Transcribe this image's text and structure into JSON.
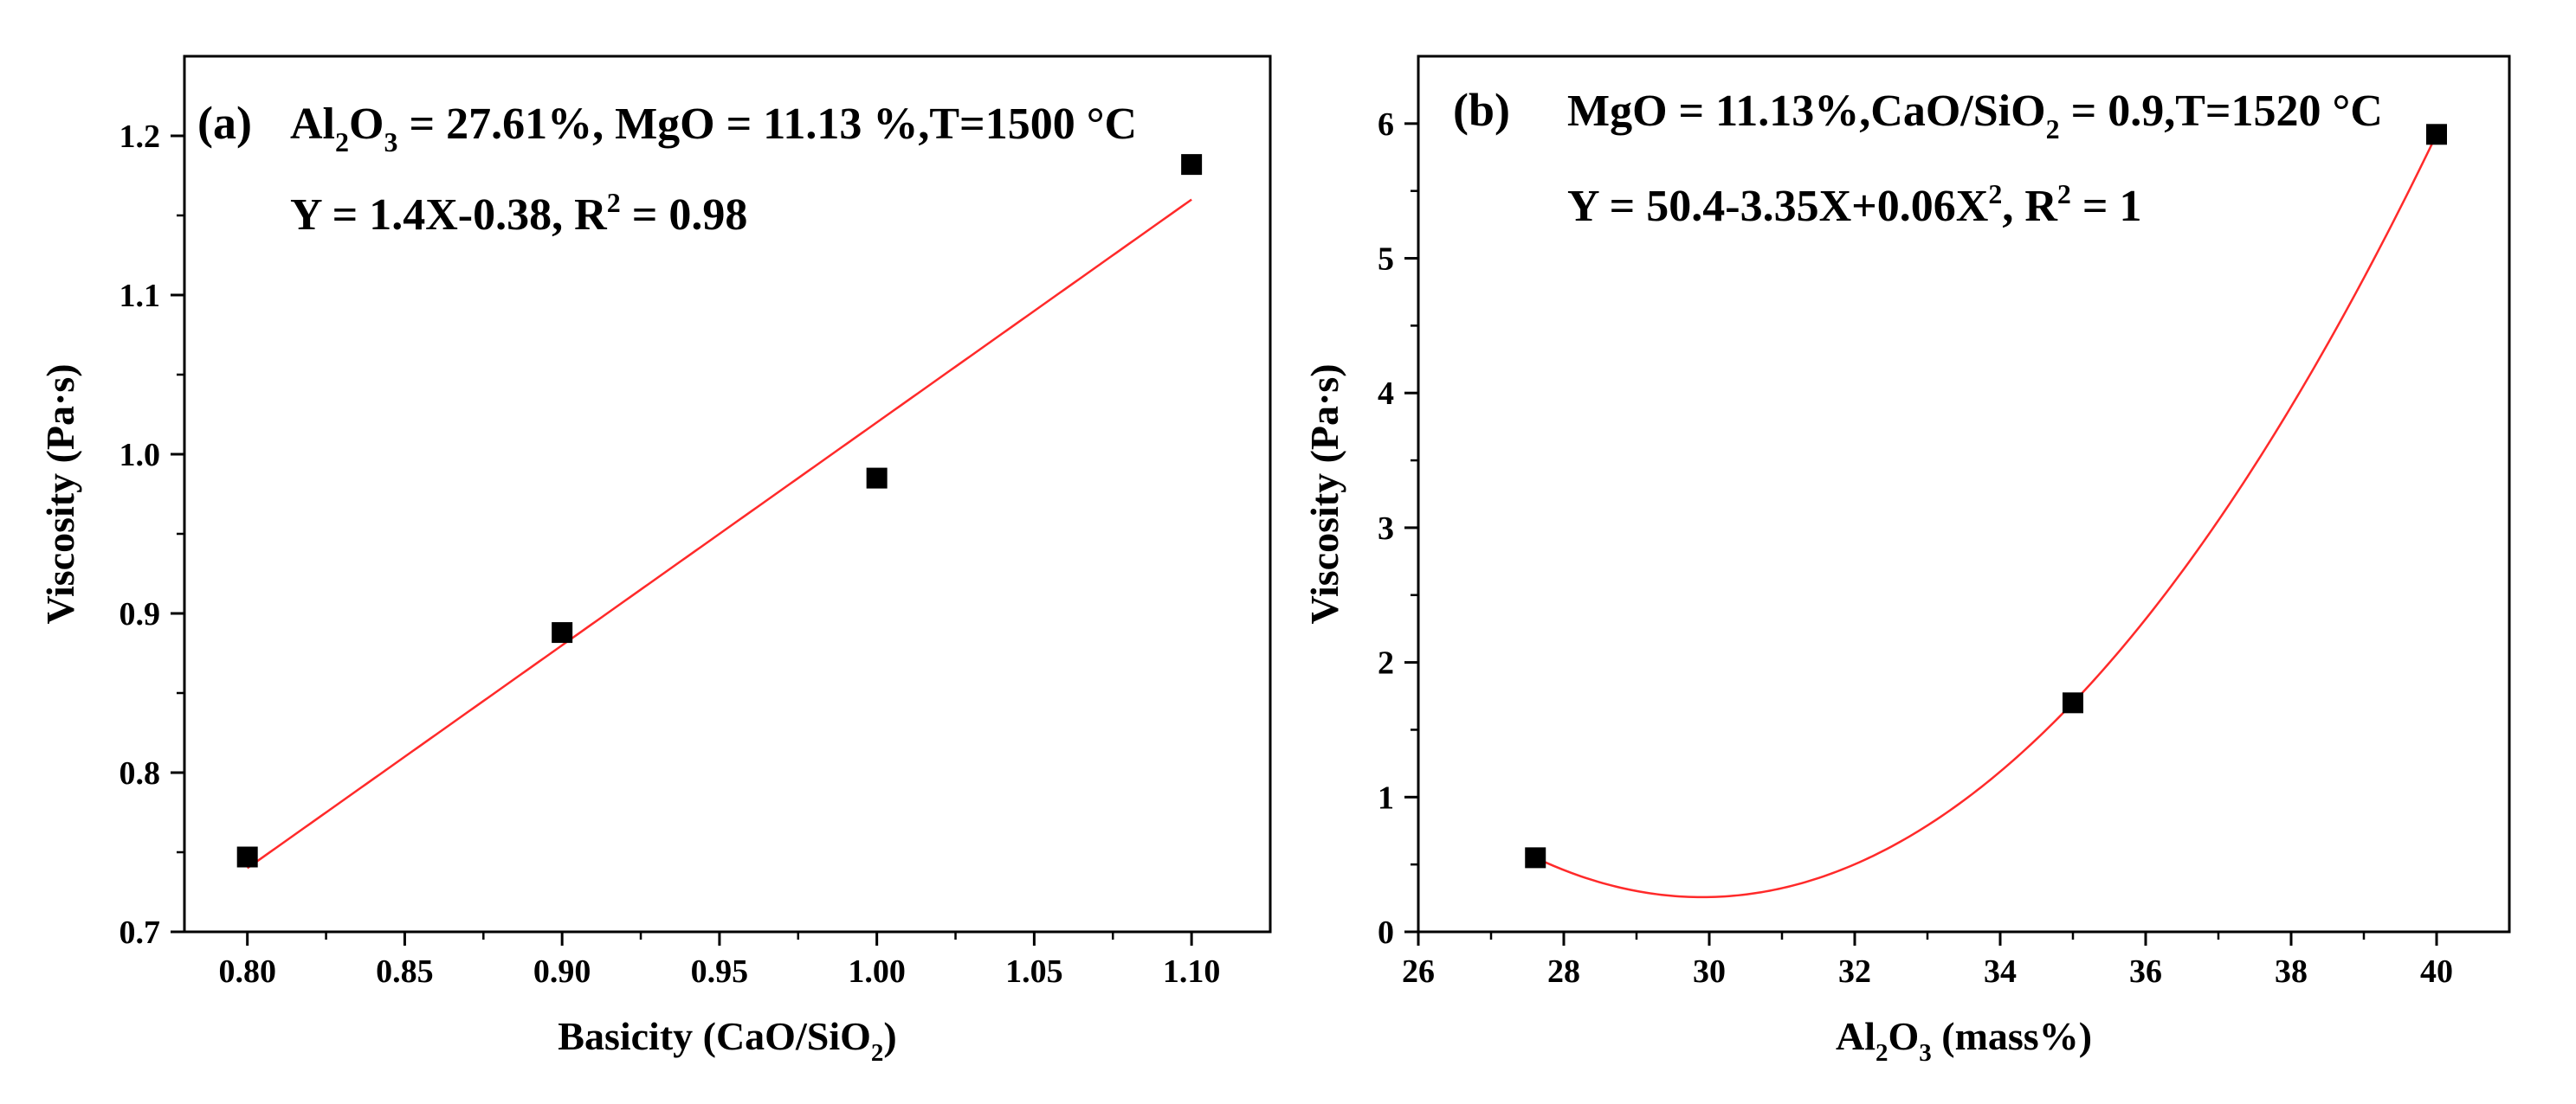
{
  "chart_data": [
    {
      "type": "scatter",
      "panel_label": "(a)",
      "annotation_line1": {
        "parts": [
          {
            "t": "Al",
            "s": ""
          },
          {
            "t": "2",
            "s": "sub"
          },
          {
            "t": "O",
            "s": ""
          },
          {
            "t": "3",
            "s": "sub"
          },
          {
            "t": " = 27.61%, MgO = 11.13 %,T=1500 °C",
            "s": ""
          }
        ]
      },
      "annotation_line2": {
        "parts": [
          {
            "t": "Y = 1.4X-0.38, R",
            "s": ""
          },
          {
            "t": "2",
            "s": "sup"
          },
          {
            "t": " = 0.98",
            "s": ""
          }
        ]
      },
      "xlabel": {
        "parts": [
          {
            "t": "Basicity (CaO/SiO",
            "s": ""
          },
          {
            "t": "2",
            "s": "sub"
          },
          {
            "t": ")",
            "s": ""
          }
        ]
      },
      "ylabel": "Viscosity (Pa·s)",
      "xlim": [
        0.78,
        1.125
      ],
      "ylim": [
        0.7,
        1.25
      ],
      "xticks": [
        "0.80",
        "0.85",
        "0.90",
        "0.95",
        "1.00",
        "1.05",
        "1.10"
      ],
      "yticks": [
        "0.7",
        "0.8",
        "0.9",
        "1.0",
        "1.1",
        "1.2"
      ],
      "points": {
        "x": [
          0.8,
          0.9,
          1.0,
          1.1
        ],
        "y": [
          0.747,
          0.888,
          0.985,
          1.182
        ]
      },
      "fit": {
        "kind": "linear",
        "a": -0.38,
        "b": 1.4,
        "c": 0,
        "x_from": 0.8,
        "x_to": 1.1
      },
      "marker_color": "#000000",
      "fit_color": "#ff2a2a"
    },
    {
      "type": "scatter",
      "panel_label": "(b)",
      "annotation_line1": {
        "parts": [
          {
            "t": "MgO = 11.13%,CaO/SiO",
            "s": ""
          },
          {
            "t": "2",
            "s": "sub"
          },
          {
            "t": " = 0.9,T=1520 °C",
            "s": ""
          }
        ]
      },
      "annotation_line2": {
        "parts": [
          {
            "t": "Y = 50.4-3.35X+0.06X",
            "s": ""
          },
          {
            "t": "2",
            "s": "sup"
          },
          {
            "t": ", R",
            "s": ""
          },
          {
            "t": "2",
            "s": "sup"
          },
          {
            "t": " = 1",
            "s": ""
          }
        ]
      },
      "xlabel": {
        "parts": [
          {
            "t": "Al",
            "s": ""
          },
          {
            "t": "2",
            "s": "sub"
          },
          {
            "t": "O",
            "s": ""
          },
          {
            "t": "3",
            "s": "sub"
          },
          {
            "t": " (mass%)",
            "s": ""
          }
        ]
      },
      "ylabel": "Viscosity (Pa·s)",
      "xlim": [
        26,
        41
      ],
      "ylim": [
        0,
        6.5
      ],
      "xticks": [
        "26",
        "28",
        "30",
        "32",
        "34",
        "36",
        "38",
        "40"
      ],
      "yticks": [
        "0",
        "1",
        "2",
        "3",
        "4",
        "5",
        "6"
      ],
      "points": {
        "x": [
          27.61,
          35.0,
          40.0
        ],
        "y": [
          0.55,
          1.7,
          5.92
        ]
      },
      "fit": {
        "kind": "quadratic",
        "x_from": 27.61,
        "x_to": 40.0,
        "through_points": true
      },
      "marker_color": "#000000",
      "fit_color": "#ff2a2a"
    }
  ]
}
